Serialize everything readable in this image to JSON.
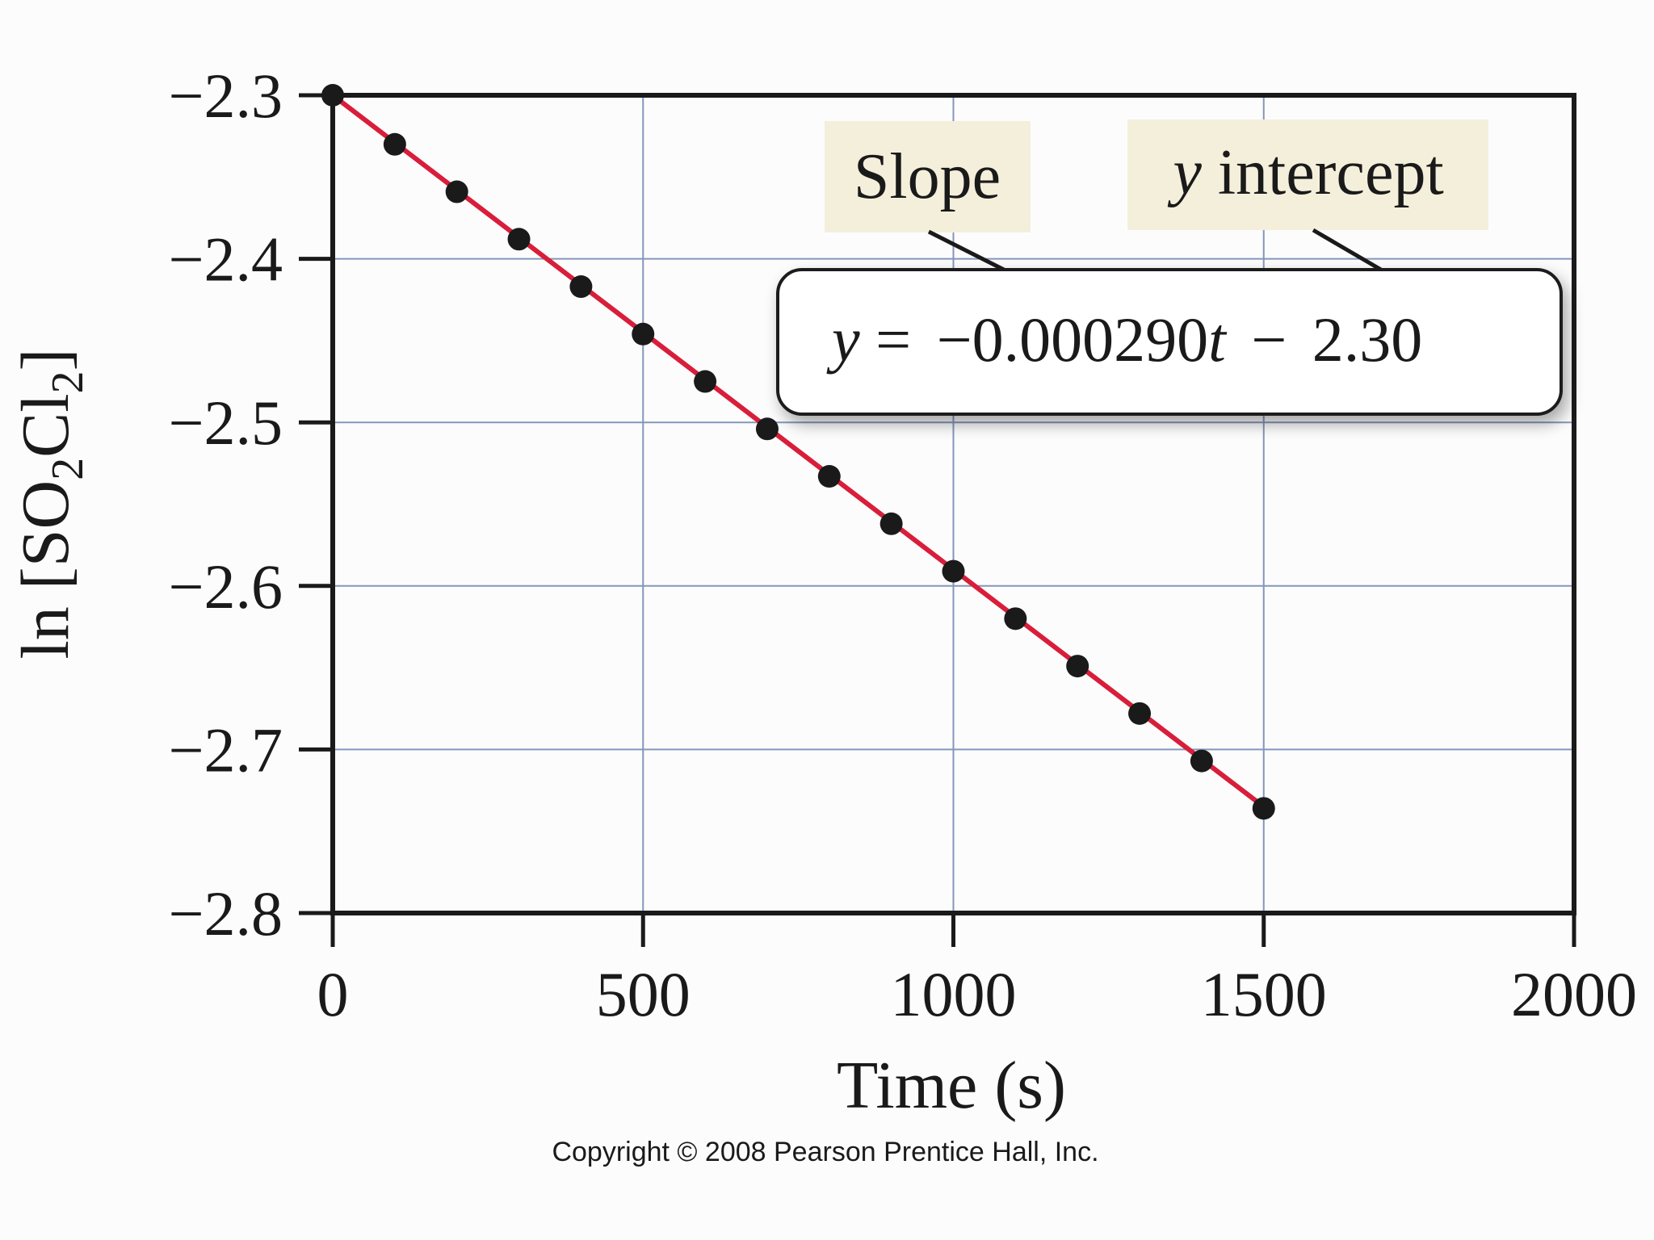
{
  "chart_data": {
    "type": "scatter",
    "xlabel": "Time (s)",
    "ylabel": {
      "prefix": "ln [",
      "species_1": "SO",
      "sub_1": "2",
      "species_2": "Cl",
      "sub_2": "2",
      "suffix": "]"
    },
    "xlim": [
      0,
      2000
    ],
    "ylim": [
      -2.8,
      -2.3
    ],
    "x_ticks": [
      0,
      500,
      1000,
      1500,
      2000
    ],
    "x_tick_labels": [
      "0",
      "500",
      "1000",
      "1500",
      "2000"
    ],
    "y_ticks": [
      -2.3,
      -2.4,
      -2.5,
      -2.6,
      -2.7,
      -2.8
    ],
    "y_tick_labels": [
      "−2.3",
      "−2.4",
      "−2.5",
      "−2.6",
      "−2.7",
      "−2.8"
    ],
    "grid": true,
    "points": {
      "x": [
        0,
        100,
        200,
        300,
        400,
        500,
        600,
        700,
        800,
        900,
        1000,
        1100,
        1200,
        1300,
        1400,
        1500
      ],
      "y": [
        -2.3,
        -2.33,
        -2.359,
        -2.388,
        -2.417,
        -2.446,
        -2.475,
        -2.504,
        -2.533,
        -2.562,
        -2.591,
        -2.62,
        -2.649,
        -2.678,
        -2.707,
        -2.736
      ]
    },
    "fit_line": {
      "slope": -0.00029,
      "intercept": -2.3,
      "x_range": [
        0,
        1500
      ]
    },
    "annotations": {
      "slope_label": "Slope",
      "intercept_label_italic": "y",
      "intercept_label_rest": " intercept",
      "equation": {
        "y": "y",
        "eq": " = ",
        "coef": "−0.000290",
        "t": "t",
        "minus": " − ",
        "const": "2.30"
      }
    },
    "copyright": "Copyright © 2008 Pearson Prentice Hall, Inc.",
    "colors": {
      "line": "#d81e3a",
      "points": "#1a1a1a",
      "grid": "#8496bb",
      "frame": "#1a1a1a",
      "label_bg": "#f4efdb"
    }
  }
}
